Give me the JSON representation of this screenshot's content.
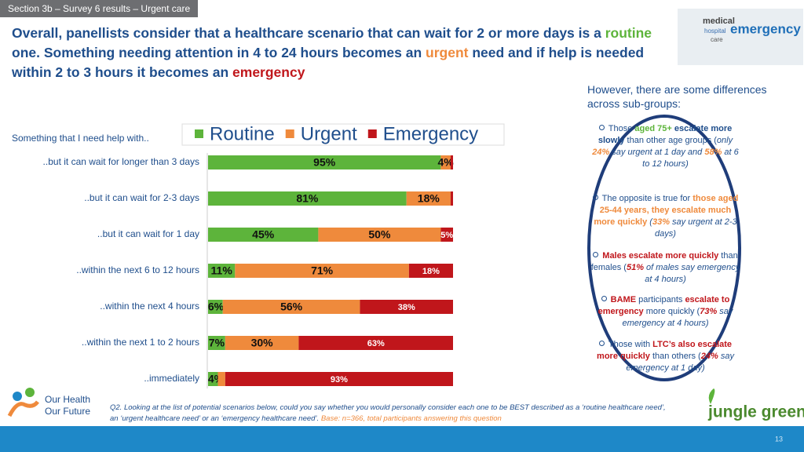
{
  "header": {
    "section": "Section 3b – Survey 6 results – Urgent care"
  },
  "headline": [
    "Overall, panellists consider that a healthcare scenario that can wait for 2 or more days is a ",
    "routine",
    " one. Something needing attention in 4 to 24 hours becomes an ",
    "urgent",
    " need and if help is needed within 2 to 3 hours it becomes an ",
    "emergency"
  ],
  "image_words": [
    "medical",
    "hospital",
    "emergency",
    "care"
  ],
  "sidebar": {
    "intro": "However, there are some differences across sub-groups:",
    "bullets": [
      [
        "Those ",
        "aged 75+ ",
        "escalate more slowly",
        " than other age groups (",
        "only ",
        "24%",
        " say urgent at 1 day and ",
        "58%",
        " at 6 to 12 hours)"
      ],
      [
        "The opposite is true for ",
        "those aged 25-44 years, they escalate much more quickly",
        "(",
        "33%",
        " say urgent at 2-3 days)"
      ],
      [
        "Males escalate more quickly",
        " than females (",
        "51%",
        " of males say emergency at 4 hours)"
      ],
      [
        "BAME",
        " participants ",
        "escalate to emergency",
        " more quickly (",
        "73%",
        " say emergency at 4 hours)"
      ],
      [
        "Those with ",
        "LTC’s also escalate more quickly",
        " than others (",
        "24%",
        " say emergency at 1 day)"
      ]
    ]
  },
  "chart_data": {
    "type": "stacked_bar_horizontal",
    "axis_label": "Something that I need help with..",
    "categories": [
      "..but it can wait for longer than 3 days",
      "..but it can wait for 2-3 days",
      "..but it can wait for 1 day",
      "..within the next 6 to 12 hours",
      "..within the next 4 hours",
      "..within the next 1 to 2 hours",
      "..immediately"
    ],
    "series": [
      {
        "name": "Routine",
        "color": "#5db43b",
        "values": [
          95,
          81,
          45,
          11,
          6,
          7,
          4
        ],
        "value_labels": [
          "95%",
          "81%",
          "45%",
          "11%",
          "6%",
          "7%",
          "4%"
        ]
      },
      {
        "name": "Urgent",
        "color": "#ef8a3c",
        "values": [
          4,
          18,
          50,
          71,
          56,
          30,
          3
        ],
        "value_labels": [
          "4%",
          "18%",
          "50%",
          "71%",
          "56%",
          "30%",
          null
        ]
      },
      {
        "name": "Emergency",
        "color": "#c0161b",
        "values": [
          1,
          1,
          5,
          18,
          38,
          63,
          93
        ],
        "value_labels": [
          null,
          null,
          "5%",
          "18%",
          "38%",
          "63%",
          "93%"
        ]
      }
    ],
    "legend": "top"
  },
  "footnote": {
    "question": "Q2. Looking at the list of potential scenarios below, could you say whether you would personally consider each one to be BEST described as a ‘routine healthcare need’, an ‘urgent healthcare need’ or an ‘emergency healthcare need’.",
    "base": "Base: n=366, total participants answering this question"
  },
  "logos": {
    "left": [
      "Our Health",
      "Our Future"
    ],
    "right": "jungle green"
  },
  "page_number": "13"
}
